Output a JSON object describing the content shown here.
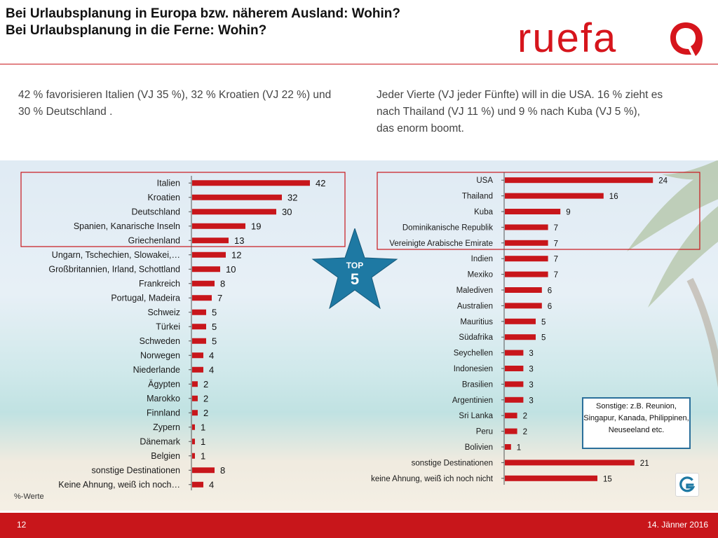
{
  "header": {
    "title_line1": "Bei Urlaubsplanung in Europa bzw. näherem Ausland: Wohin?",
    "title_line2": "Bei Urlaubsplanung in die Ferne: Wohin?",
    "logo_text": "ruefa",
    "brand_color": "#c8161b"
  },
  "intro": {
    "left": "42 % favorisieren Italien (VJ 35 %), 32 % Kroatien (VJ 22 %) und 30 % Deutschland .",
    "right_line1": "Jeder Vierte (VJ jeder Fünfte) will in die USA. 16 % zieht es",
    "right_line2": "nach Thailand (VJ 11 %) und 9 % nach Kuba (VJ 5 %),",
    "right_line3": "das enorm boomt."
  },
  "badge": {
    "line1": "TOP",
    "line2": "5",
    "color": "#1e79a3"
  },
  "note": {
    "line1": "Sonstige:  z.B. Reunion,",
    "line2": "Singapur, Kanada, Philippinen,",
    "line3": "Neuseeland etc."
  },
  "unit_note": "%-Werte",
  "footer": {
    "page": "12",
    "date": "14. Jänner 2016"
  },
  "chart_data": [
    {
      "type": "bar",
      "orientation": "horizontal",
      "bar_color": "#c8161b",
      "highlight_top": 5,
      "categories": [
        "Italien",
        "Kroatien",
        "Deutschland",
        "Spanien, Kanarische Inseln",
        "Griechenland",
        "Ungarn, Tschechien, Slowakei,…",
        "Großbritannien, Irland, Schottland",
        "Frankreich",
        "Portugal, Madeira",
        "Schweiz",
        "Türkei",
        "Schweden",
        "Norwegen",
        "Niederlande",
        "Ägypten",
        "Marokko",
        "Finnland",
        "Zypern",
        "Dänemark",
        "Belgien",
        "sonstige Destinationen",
        "Keine Ahnung, weiß ich noch…"
      ],
      "values": [
        42,
        32,
        30,
        19,
        13,
        12,
        10,
        8,
        7,
        5,
        5,
        5,
        4,
        4,
        2,
        2,
        2,
        1,
        1,
        1,
        8,
        4
      ]
    },
    {
      "type": "bar",
      "orientation": "horizontal",
      "bar_color": "#c8161b",
      "highlight_top": 5,
      "categories": [
        "USA",
        "Thailand",
        "Kuba",
        "Dominikanische Republik",
        "Vereinigte Arabische Emirate",
        "Indien",
        "Mexiko",
        "Malediven",
        "Australien",
        "Mauritius",
        "Südafrika",
        "Seychellen",
        "Indonesien",
        "Brasilien",
        "Argentinien",
        "Sri Lanka",
        "Peru",
        "Bolivien",
        "sonstige Destinationen",
        "keine Ahnung, weiß ich noch nicht"
      ],
      "values": [
        24,
        16,
        9,
        7,
        7,
        7,
        7,
        6,
        6,
        5,
        5,
        3,
        3,
        3,
        3,
        2,
        2,
        1,
        21,
        15
      ]
    }
  ]
}
